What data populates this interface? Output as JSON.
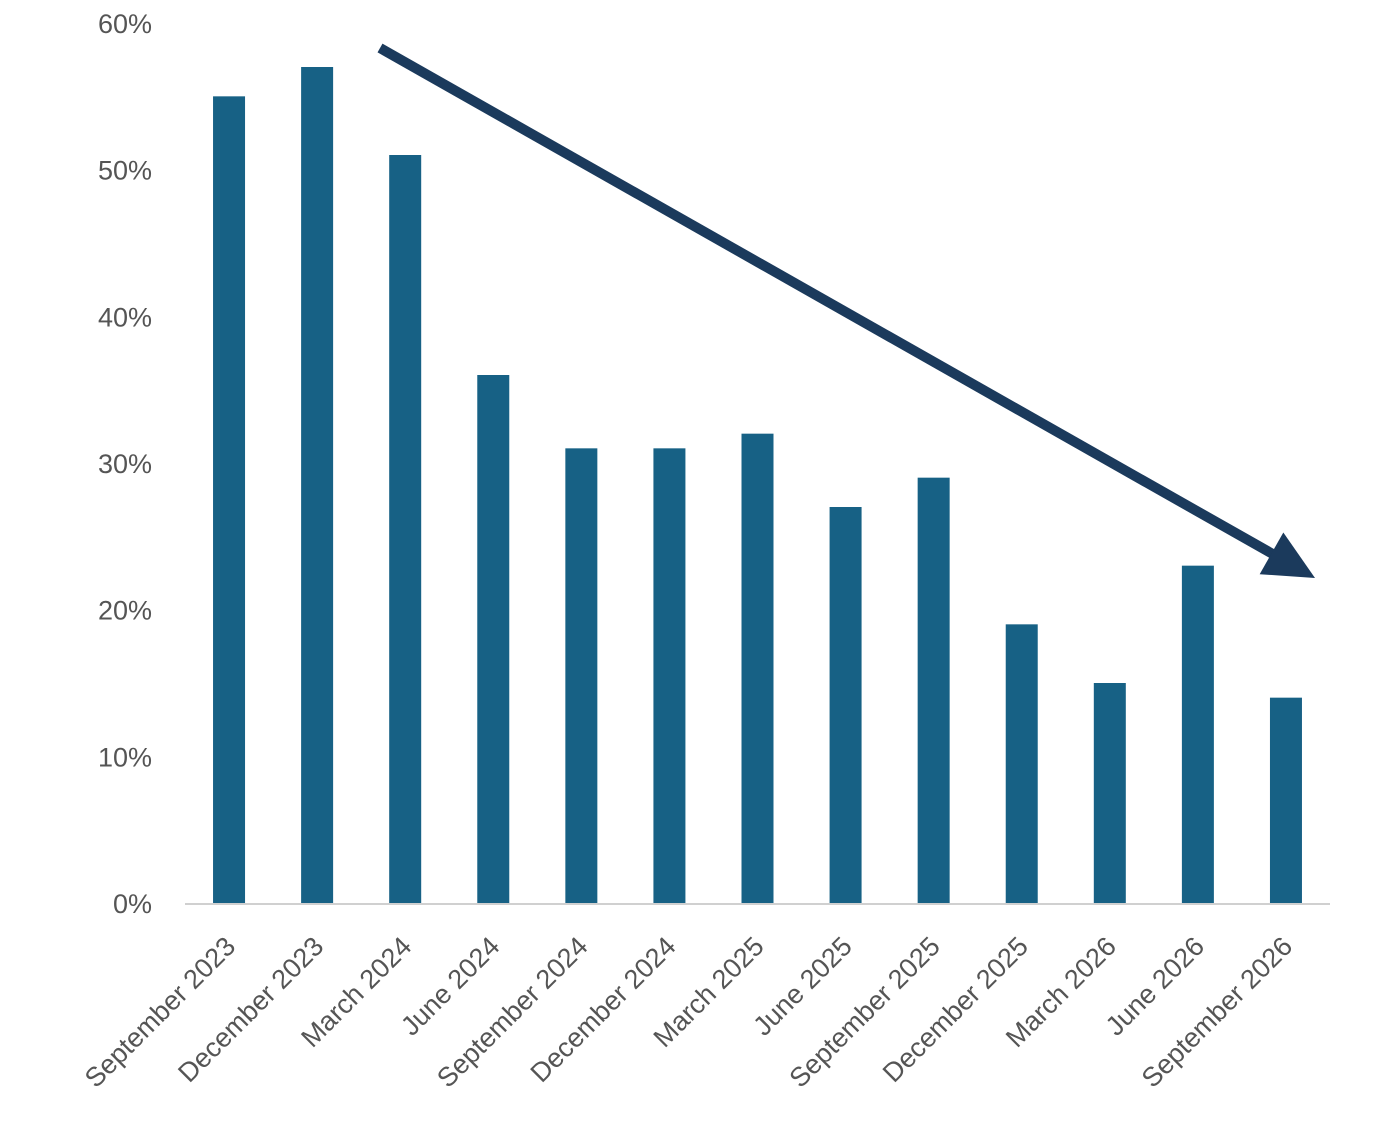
{
  "chart_data": {
    "type": "bar",
    "categories": [
      "September 2023",
      "December 2023",
      "March 2024",
      "June 2024",
      "September 2024",
      "December 2024",
      "March 2025",
      "June 2025",
      "September 2025",
      "December 2025",
      "March 2026",
      "June 2026",
      "September 2026"
    ],
    "values": [
      55,
      57,
      51,
      36,
      31,
      31,
      32,
      27,
      29,
      19,
      15,
      23,
      14
    ],
    "value_unit": "%",
    "title": "",
    "xlabel": "",
    "ylabel": "",
    "ylim": [
      0,
      60
    ],
    "yticks": [
      "0%",
      "10%",
      "20%",
      "30%",
      "40%",
      "50%",
      "60%"
    ],
    "grid": false,
    "legend": "none",
    "annotations": [
      {
        "type": "arrow",
        "direction": "downward trend",
        "color": "#1b3a5c"
      }
    ],
    "colors": {
      "bar": "#176185",
      "arrow": "#1b3a5c",
      "axis": "#d0d0d0",
      "text": "#555555"
    }
  }
}
